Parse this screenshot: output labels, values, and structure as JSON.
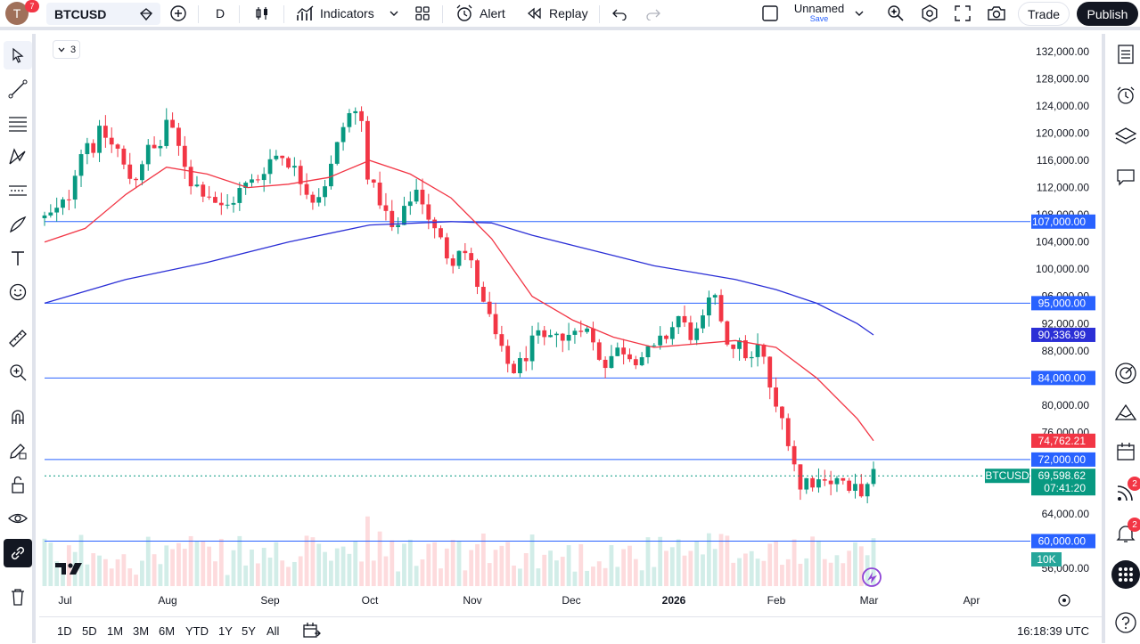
{
  "toolbar": {
    "avatar_initial": "T",
    "avatar_badge": "7",
    "symbol": "BTCUSD",
    "interval": "D",
    "indicators": "Indicators",
    "alert": "Alert",
    "replay": "Replay",
    "layout_name": "Unnamed",
    "layout_save": "Save",
    "trade": "Trade",
    "publish": "Publish"
  },
  "legend": {
    "collapsed_count": "3"
  },
  "price_axis": {
    "ticks": [
      "132,000.00",
      "128,000.00",
      "124,000.00",
      "120,000.00",
      "116,000.00",
      "112,000.00",
      "108,000.00",
      "104,000.00",
      "100,000.00",
      "96,000.00",
      "92,000.00",
      "88,000.00",
      "80,000.00",
      "76,000.00",
      "64,000.00",
      "56,000.00"
    ],
    "labels": {
      "level_107": "107,000.00",
      "level_95": "95,000.00",
      "ma_blue": "90,336.99",
      "level_84": "84,000.00",
      "ma_red": "74,762.21",
      "level_72": "72,000.00",
      "symbol_tag": "BTCUSD",
      "last_price": "69,598.62",
      "countdown": "07:41:20",
      "level_60": "60,000.00",
      "volume": "10K"
    }
  },
  "time_axis": {
    "labels": [
      "Jul",
      "Aug",
      "Sep",
      "Oct",
      "Nov",
      "Dec",
      "2026",
      "Feb",
      "Mar",
      "Apr"
    ]
  },
  "bottom": {
    "ranges": [
      "1D",
      "5D",
      "1M",
      "3M",
      "6M",
      "YTD",
      "1Y",
      "5Y",
      "All"
    ],
    "clock": "16:18:39 UTC"
  },
  "right_badges": {
    "ideas": "2",
    "alerts": "2"
  },
  "colors": {
    "up": "#089981",
    "down": "#f23645",
    "ma_red": "#f23645",
    "ma_blue": "#2b2fd6",
    "hline": "#2962ff"
  },
  "chart_data": {
    "type": "candlestick",
    "symbol": "BTCUSD",
    "interval": "D",
    "y_range": [
      54000,
      134000
    ],
    "x_range": [
      "2025-07-01",
      "2026-04-15"
    ],
    "horizontal_levels": [
      107000,
      95000,
      84000,
      72000,
      60000
    ],
    "last_price": 69598.62,
    "ma_red_last": 74762.21,
    "ma_blue_last": 90336.99,
    "volume_label": "10K",
    "price_path": [
      [
        0,
        107500
      ],
      [
        4,
        108000
      ],
      [
        8,
        109000
      ],
      [
        12,
        111000
      ],
      [
        16,
        116000
      ],
      [
        20,
        119000
      ],
      [
        24,
        118000
      ],
      [
        28,
        120500
      ],
      [
        32,
        118500
      ],
      [
        36,
        117500
      ],
      [
        40,
        114000
      ],
      [
        44,
        113000
      ],
      [
        48,
        116000
      ],
      [
        52,
        118000
      ],
      [
        56,
        117000
      ],
      [
        60,
        122000
      ],
      [
        64,
        119000
      ],
      [
        68,
        116500
      ],
      [
        72,
        113000
      ],
      [
        76,
        112000
      ],
      [
        80,
        111500
      ],
      [
        84,
        110000
      ],
      [
        88,
        108500
      ],
      [
        92,
        110000
      ],
      [
        96,
        111500
      ],
      [
        100,
        112500
      ],
      [
        104,
        113000
      ],
      [
        108,
        115000
      ],
      [
        112,
        116500
      ],
      [
        116,
        117000
      ],
      [
        120,
        116000
      ],
      [
        124,
        114000
      ],
      [
        128,
        112500
      ],
      [
        132,
        110500
      ],
      [
        136,
        111500
      ],
      [
        140,
        114000
      ],
      [
        144,
        118000
      ],
      [
        148,
        122000
      ],
      [
        152,
        123500
      ],
      [
        156,
        121500
      ],
      [
        160,
        112000
      ],
      [
        164,
        111000
      ],
      [
        168,
        108000
      ],
      [
        172,
        105000
      ],
      [
        176,
        107500
      ],
      [
        180,
        110500
      ],
      [
        184,
        112000
      ],
      [
        188,
        108500
      ],
      [
        192,
        105500
      ],
      [
        196,
        103500
      ],
      [
        200,
        101000
      ],
      [
        204,
        103500
      ],
      [
        208,
        102000
      ],
      [
        212,
        99000
      ],
      [
        216,
        94500
      ],
      [
        220,
        92000
      ],
      [
        224,
        88000
      ],
      [
        228,
        86000
      ],
      [
        232,
        85000
      ],
      [
        236,
        87000
      ],
      [
        240,
        89000
      ],
      [
        244,
        90000
      ],
      [
        248,
        88500
      ],
      [
        252,
        91500
      ],
      [
        256,
        89000
      ],
      [
        260,
        91000
      ],
      [
        264,
        92000
      ],
      [
        268,
        90500
      ],
      [
        272,
        87500
      ],
      [
        276,
        86500
      ],
      [
        280,
        87500
      ],
      [
        284,
        88500
      ],
      [
        288,
        87500
      ],
      [
        292,
        87000
      ],
      [
        296,
        87500
      ],
      [
        300,
        88000
      ],
      [
        304,
        89500
      ],
      [
        308,
        91000
      ],
      [
        312,
        93000
      ],
      [
        316,
        91000
      ],
      [
        320,
        90000
      ],
      [
        324,
        92000
      ],
      [
        328,
        96000
      ],
      [
        332,
        94000
      ],
      [
        336,
        89500
      ],
      [
        340,
        89000
      ],
      [
        344,
        88000
      ],
      [
        348,
        86500
      ],
      [
        352,
        89000
      ],
      [
        356,
        84000
      ],
      [
        360,
        79000
      ],
      [
        364,
        77500
      ],
      [
        368,
        73000
      ],
      [
        372,
        67500
      ],
      [
        376,
        69500
      ],
      [
        380,
        68500
      ],
      [
        384,
        70000
      ],
      [
        388,
        68500
      ],
      [
        392,
        69500
      ],
      [
        396,
        66500
      ],
      [
        400,
        68000
      ],
      [
        404,
        67000
      ],
      [
        408,
        69598
      ]
    ],
    "ma_red_path": [
      [
        0,
        104000
      ],
      [
        20,
        106000
      ],
      [
        40,
        111000
      ],
      [
        60,
        115000
      ],
      [
        80,
        114000
      ],
      [
        100,
        112000
      ],
      [
        120,
        112500
      ],
      [
        140,
        113500
      ],
      [
        160,
        116000
      ],
      [
        180,
        114000
      ],
      [
        200,
        110500
      ],
      [
        220,
        104500
      ],
      [
        240,
        96000
      ],
      [
        260,
        92500
      ],
      [
        280,
        90000
      ],
      [
        300,
        88500
      ],
      [
        320,
        89000
      ],
      [
        340,
        89500
      ],
      [
        360,
        88500
      ],
      [
        380,
        84000
      ],
      [
        400,
        78000
      ],
      [
        408,
        74762
      ]
    ],
    "ma_blue_path": [
      [
        0,
        95000
      ],
      [
        40,
        98500
      ],
      [
        80,
        101000
      ],
      [
        120,
        104000
      ],
      [
        160,
        106500
      ],
      [
        200,
        107000
      ],
      [
        220,
        106800
      ],
      [
        240,
        105000
      ],
      [
        260,
        103500
      ],
      [
        280,
        102000
      ],
      [
        300,
        100500
      ],
      [
        320,
        99500
      ],
      [
        340,
        98500
      ],
      [
        360,
        97000
      ],
      [
        380,
        95000
      ],
      [
        400,
        92000
      ],
      [
        408,
        90337
      ]
    ]
  }
}
